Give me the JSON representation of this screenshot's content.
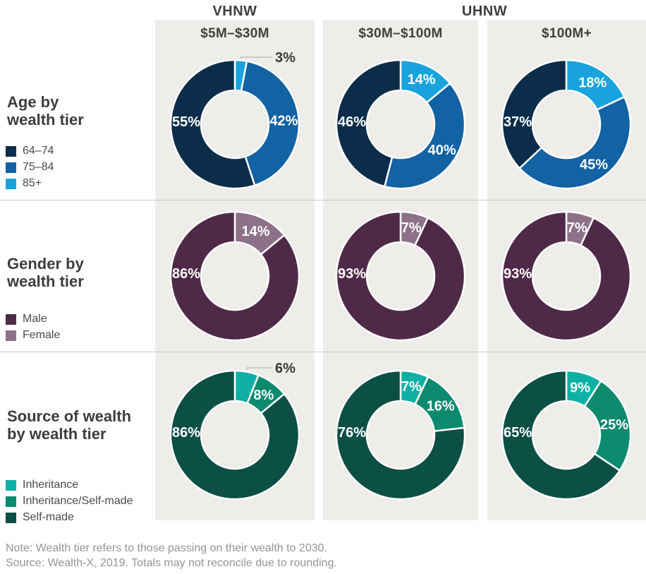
{
  "chart_data": {
    "type": "pie",
    "subtype": "donut-grid",
    "column_groups": [
      {
        "label": "VHNW",
        "columns": [
          "$5M–$30M"
        ]
      },
      {
        "label": "UHNW",
        "columns": [
          "$30M–$100M",
          "$100M+"
        ]
      }
    ],
    "columns": [
      "$5M–$30M",
      "$30M–$100M",
      "$100M+"
    ],
    "rows": [
      {
        "key": "age",
        "title_lines": [
          "Age by",
          "wealth tier"
        ],
        "legend": [
          {
            "label": "64–74",
            "color": "#0c2d4a"
          },
          {
            "label": "75–84",
            "color": "#1262a4"
          },
          {
            "label": "85+",
            "color": "#18a3dd"
          }
        ],
        "donuts": [
          {
            "column": "$5M–$30M",
            "segments": [
              {
                "label": "85+",
                "value": 3,
                "callout": true
              },
              {
                "label": "75–84",
                "value": 42
              },
              {
                "label": "64–74",
                "value": 55
              }
            ]
          },
          {
            "column": "$30M–$100M",
            "segments": [
              {
                "label": "85+",
                "value": 14
              },
              {
                "label": "75–84",
                "value": 40
              },
              {
                "label": "64–74",
                "value": 46
              }
            ]
          },
          {
            "column": "$100M+",
            "segments": [
              {
                "label": "85+",
                "value": 18
              },
              {
                "label": "75–84",
                "value": 45
              },
              {
                "label": "64–74",
                "value": 37
              }
            ]
          }
        ]
      },
      {
        "key": "gender",
        "title_lines": [
          "Gender by",
          "wealth tier"
        ],
        "legend": [
          {
            "label": "Male",
            "color": "#4e2a48"
          },
          {
            "label": "Female",
            "color": "#8d7189"
          }
        ],
        "donuts": [
          {
            "column": "$5M–$30M",
            "segments": [
              {
                "label": "Female",
                "value": 14
              },
              {
                "label": "Male",
                "value": 86
              }
            ]
          },
          {
            "column": "$30M–$100M",
            "segments": [
              {
                "label": "Female",
                "value": 7
              },
              {
                "label": "Male",
                "value": 93
              }
            ]
          },
          {
            "column": "$100M+",
            "segments": [
              {
                "label": "Female",
                "value": 7
              },
              {
                "label": "Male",
                "value": 93
              }
            ]
          }
        ]
      },
      {
        "key": "source",
        "title_lines": [
          "Source of wealth",
          "by wealth tier"
        ],
        "legend": [
          {
            "label": "Inheritance",
            "color": "#0eb0a5"
          },
          {
            "label": "Inheritance/Self-made",
            "color": "#0b8a6e"
          },
          {
            "label": "Self-made",
            "color": "#0b4f45"
          }
        ],
        "donuts": [
          {
            "column": "$5M–$30M",
            "segments": [
              {
                "label": "Inheritance",
                "value": 6,
                "callout": true
              },
              {
                "label": "Inheritance/Self-made",
                "value": 8
              },
              {
                "label": "Self-made",
                "value": 86
              }
            ]
          },
          {
            "column": "$30M–$100M",
            "segments": [
              {
                "label": "Inheritance",
                "value": 7
              },
              {
                "label": "Inheritance/Self-made",
                "value": 16
              },
              {
                "label": "Self-made",
                "value": 76
              }
            ]
          },
          {
            "column": "$100M+",
            "segments": [
              {
                "label": "Inheritance",
                "value": 9
              },
              {
                "label": "Inheritance/Self-made",
                "value": 25
              },
              {
                "label": "Self-made",
                "value": 65
              }
            ]
          }
        ]
      }
    ],
    "note_lines": [
      "Note: Wealth tier refers to those passing on their wealth to 2030.",
      "Source: Wealth-X, 2019. Totals may not reconcile due to rounding."
    ],
    "colors": {
      "panel_bg": "#efede9",
      "separator": "#cbcbcb",
      "heading_text": "#3f3f3f",
      "legend_text": "#4a4a4a",
      "note_text": "#959595",
      "slice_label": "#ffffff",
      "callout_text": "#3a3a3a",
      "callout_line": "#bfbfbf"
    },
    "layout_hints": {
      "grid": "3x3 donuts",
      "legend_position": "left",
      "labels": "inside slices, callouts for tiny slices"
    }
  }
}
